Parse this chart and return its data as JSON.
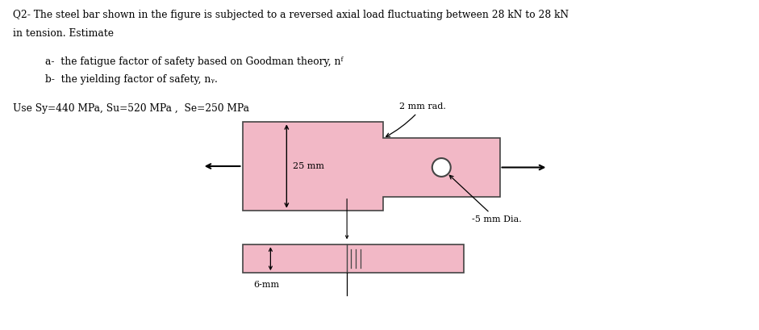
{
  "title_line1": "Q2- The steel bar shown in the figure is subjected to a reversed axial load fluctuating between 28 kN to 28 kN",
  "title_line2": "in tension. Estimate",
  "item_a": "a-  the fatigue factor of safety based on Goodman theory, nᶠ",
  "item_b": "b-  the yielding factor of safety, nᵧ.",
  "params": "Use Sy=440 MPa, Su=520 MPa ,  Se=250 MPa",
  "bg_color": "#ffffff",
  "bar_fill_color": "#f2b8c6",
  "bar_edge_color": "#444444",
  "text_color": "#000000",
  "label_2mm": "2 mm rad.",
  "label_25mm": "25 mm",
  "label_5mm": "-5 mm Dia.",
  "label_6mm": "6-mm",
  "fig_width": 9.41,
  "fig_height": 4.09
}
